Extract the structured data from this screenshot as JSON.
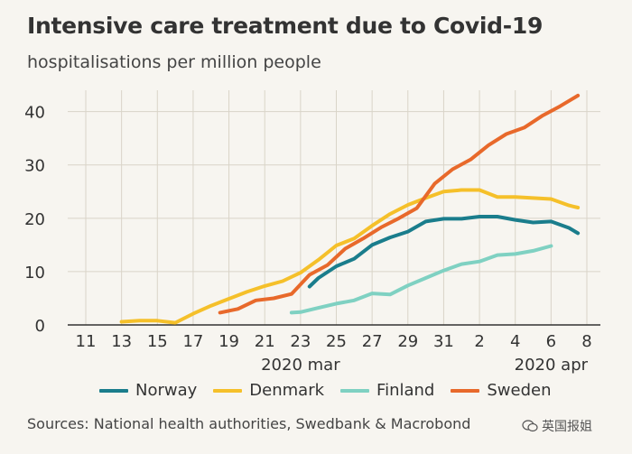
{
  "title": "Intensive care treatment due to Covid-19",
  "subtitle": "hospitalisations per million people",
  "source": "Sources: National health authorities, Swedbank & Macrobond",
  "watermark": "英国报姐",
  "colors": {
    "norway": "#1a7d8c",
    "denmark": "#f5c02a",
    "finland": "#7fd1c2",
    "sweden": "#e8692b",
    "grid": "#d9d4c8",
    "axis": "#333333"
  },
  "chart_data": {
    "type": "line",
    "title": "Intensive care treatment due to Covid-19",
    "subtitle": "hospitalisations per million people",
    "x_tick_labels": [
      "11",
      "13",
      "15",
      "17",
      "19",
      "21",
      "23",
      "25",
      "27",
      "29",
      "31",
      "2",
      "4",
      "6",
      "8"
    ],
    "x_range": [
      0,
      28
    ],
    "x_sublabels": [
      {
        "label": "2020 mar",
        "x": 12
      },
      {
        "label": "2020 apr",
        "x": 26
      }
    ],
    "y_ticks": [
      0,
      10,
      20,
      30,
      40
    ],
    "ylim": [
      0,
      44
    ],
    "grid": true,
    "legend_position": "bottom",
    "series": [
      {
        "name": "Norway",
        "color": "#1a7d8c",
        "x": [
          12.5,
          13,
          14,
          15,
          16,
          17,
          18,
          19,
          20,
          21,
          22,
          23,
          24,
          25,
          26,
          27,
          27.5
        ],
        "values": [
          7.2,
          8.8,
          11,
          12.4,
          15,
          16.4,
          17.5,
          19.4,
          19.9,
          19.9,
          20.3,
          20.3,
          19.7,
          19.2,
          19.4,
          18.2,
          17.2
        ]
      },
      {
        "name": "Denmark",
        "color": "#f5c02a",
        "x": [
          2,
          3,
          4,
          5,
          6,
          7,
          8,
          9,
          10,
          11,
          12,
          13,
          14,
          15,
          16,
          17,
          18,
          19,
          20,
          21,
          22,
          23,
          24,
          25,
          26,
          27,
          27.5
        ],
        "values": [
          0.6,
          0.8,
          0.8,
          0.4,
          2.1,
          3.6,
          4.9,
          6.2,
          7.3,
          8.2,
          9.8,
          12.2,
          14.9,
          16.2,
          18.6,
          20.8,
          22.5,
          23.8,
          25.0,
          25.3,
          25.3,
          24.0,
          24.0,
          23.8,
          23.6,
          22.4,
          22.0
        ]
      },
      {
        "name": "Finland",
        "color": "#7fd1c2",
        "x": [
          11.5,
          12,
          13,
          14,
          15,
          16,
          17,
          18,
          19,
          20,
          21,
          22,
          23,
          24,
          25,
          26
        ],
        "values": [
          2.3,
          2.4,
          3.2,
          4.0,
          4.6,
          5.9,
          5.7,
          7.4,
          8.8,
          10.2,
          11.4,
          11.9,
          13.1,
          13.3,
          13.9,
          14.8
        ]
      },
      {
        "name": "Sweden",
        "color": "#e8692b",
        "x": [
          7.5,
          8.5,
          9.5,
          10.5,
          11.5,
          12.5,
          13.5,
          14.5,
          15.5,
          16.5,
          17.5,
          18.5,
          19.5,
          20.5,
          21.5,
          22.5,
          23.5,
          24.5,
          25.5,
          26.5,
          27.5
        ],
        "values": [
          2.3,
          3.0,
          4.6,
          5.0,
          5.8,
          9.4,
          11.2,
          14.3,
          16.2,
          18.3,
          20.0,
          21.9,
          26.5,
          29.2,
          31.0,
          33.7,
          35.8,
          37.0,
          39.2,
          41.0,
          43.0
        ]
      }
    ]
  }
}
